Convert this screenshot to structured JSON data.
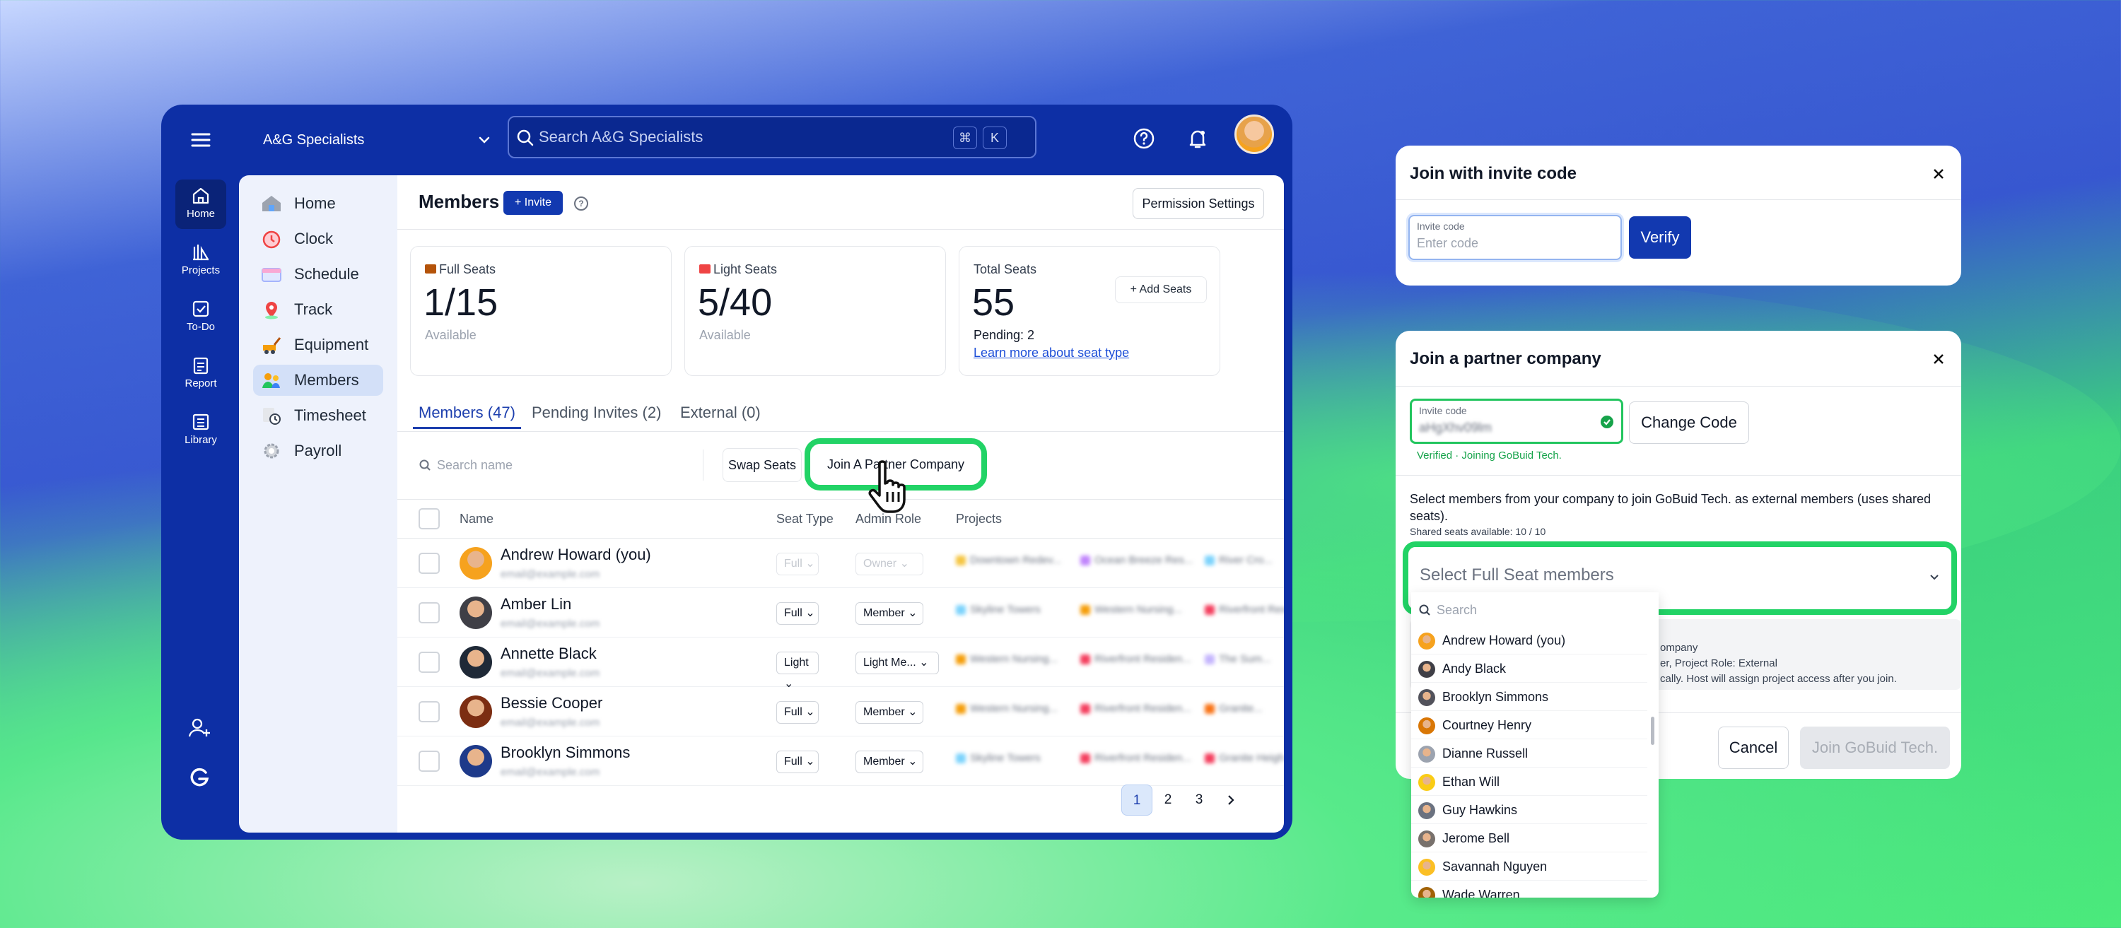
{
  "app": {
    "org_name": "A&G Specialists",
    "search_placeholder": "Search A&G Specialists",
    "shortcut_keys": [
      "⌘",
      "K"
    ]
  },
  "rail": {
    "items": [
      {
        "label": "Home",
        "icon": "home-icon",
        "active": true
      },
      {
        "label": "Projects",
        "icon": "projects-icon",
        "active": false
      },
      {
        "label": "To-Do",
        "icon": "todo-icon",
        "active": false
      },
      {
        "label": "Report",
        "icon": "report-icon",
        "active": false
      },
      {
        "label": "Library",
        "icon": "library-icon",
        "active": false
      }
    ]
  },
  "sidebar": {
    "items": [
      {
        "label": "Home",
        "icon": "home-icon"
      },
      {
        "label": "Clock",
        "icon": "clock-icon"
      },
      {
        "label": "Schedule",
        "icon": "schedule-icon"
      },
      {
        "label": "Track",
        "icon": "track-icon"
      },
      {
        "label": "Equipment",
        "icon": "equipment-icon"
      },
      {
        "label": "Members",
        "icon": "members-icon",
        "active": true
      },
      {
        "label": "Timesheet",
        "icon": "timesheet-icon"
      },
      {
        "label": "Payroll",
        "icon": "payroll-icon"
      }
    ]
  },
  "members": {
    "title": "Members",
    "invite_label": "+ Invite",
    "permission_label": "Permission Settings",
    "cards": {
      "full": {
        "label": "Full Seats",
        "value": "1/15",
        "sub": "Available"
      },
      "light": {
        "label": "Light Seats",
        "value": "5/40",
        "sub": "Available"
      },
      "total": {
        "label": "Total Seats",
        "value": "55",
        "pending": "Pending: 2",
        "link": "Learn more about seat type",
        "add_label": "Add Seats"
      }
    },
    "tabs": [
      "Members (47)",
      "Pending Invites (2)",
      "External (0)"
    ],
    "search_placeholder": "Search name",
    "swap_label": "Swap Seats",
    "join_label": "Join A Partner Company",
    "columns": {
      "name": "Name",
      "seat": "Seat Type",
      "role": "Admin Role",
      "projects": "Projects"
    },
    "rows": [
      {
        "name": "Andrew Howard (you)",
        "email": "email@example.com",
        "seat": "Full",
        "role": "Owner",
        "disabled": true,
        "projects": [
          "Downtown Redev...",
          "Ocean Breeze Res...",
          "River Cro..."
        ],
        "colors": [
          "#f5c542",
          "#c084fc",
          "#7dd3fc"
        ]
      },
      {
        "name": "Amber Lin",
        "email": "email@example.com",
        "seat": "Full",
        "role": "Member",
        "disabled": false,
        "projects": [
          "Skyline Towers",
          "Western Nursing...",
          "Riverfront Res..."
        ],
        "colors": [
          "#7dd3fc",
          "#f59e0b",
          "#f43f5e"
        ]
      },
      {
        "name": "Annette Black",
        "email": "email@example.com",
        "seat": "Light",
        "role": "Light Me...",
        "disabled": false,
        "projects": [
          "Western Nursing...",
          "Riverfront Residen...",
          "The Sum..."
        ],
        "colors": [
          "#f59e0b",
          "#f43f5e",
          "#c4b5fd"
        ]
      },
      {
        "name": "Bessie Cooper",
        "email": "email@example.com",
        "seat": "Full",
        "role": "Member",
        "disabled": false,
        "projects": [
          "Western Nursing...",
          "Riverfront Residen...",
          "Granite..."
        ],
        "colors": [
          "#f59e0b",
          "#f43f5e",
          "#f97316"
        ]
      },
      {
        "name": "Brooklyn Simmons",
        "email": "email@example.com",
        "seat": "Full",
        "role": "Member",
        "disabled": false,
        "projects": [
          "Skyline Towers",
          "Riverfront Residen...",
          "Granite Heigh..."
        ],
        "colors": [
          "#7dd3fc",
          "#f43f5e",
          "#f43f5e"
        ]
      }
    ],
    "pages": [
      "1",
      "2",
      "3"
    ],
    "next_icon": "chevron-right-icon"
  },
  "invite_dialog": {
    "title": "Join with invite code",
    "field_label": "Invite code",
    "field_placeholder": "Enter code",
    "verify_label": "Verify"
  },
  "partner_dialog": {
    "title": "Join a partner company",
    "field_label": "Invite code",
    "field_value": "aHgXhv09lm",
    "change_label": "Change Code",
    "verified_text": "Verified · Joining GoBuid Tech.",
    "description": "Select members from your company to join GoBuid Tech. as external members (uses shared seats).",
    "shared_text": "Shared seats available: 10 / 10",
    "select_placeholder": "Select Full Seat members",
    "info_lines": [
      "ompany",
      "er, Project Role: External",
      "cally. Host will assign project access after you join."
    ],
    "cancel_label": "Cancel",
    "join_label": "Join GoBuid Tech."
  },
  "dropdown": {
    "search_placeholder": "Search",
    "items": [
      "Andrew Howard (you)",
      "Andy Black",
      "Brooklyn Simmons",
      "Courtney Henry",
      "Dianne Russell",
      "Ethan Will",
      "Guy Hawkins",
      "Jerome Bell",
      "Savannah Nguyen",
      "Wade Warren"
    ]
  },
  "colors": {
    "brand": "#0d2fa5",
    "accent": "#1239b0",
    "highlight": "#22d366",
    "success": "#16a34a"
  }
}
